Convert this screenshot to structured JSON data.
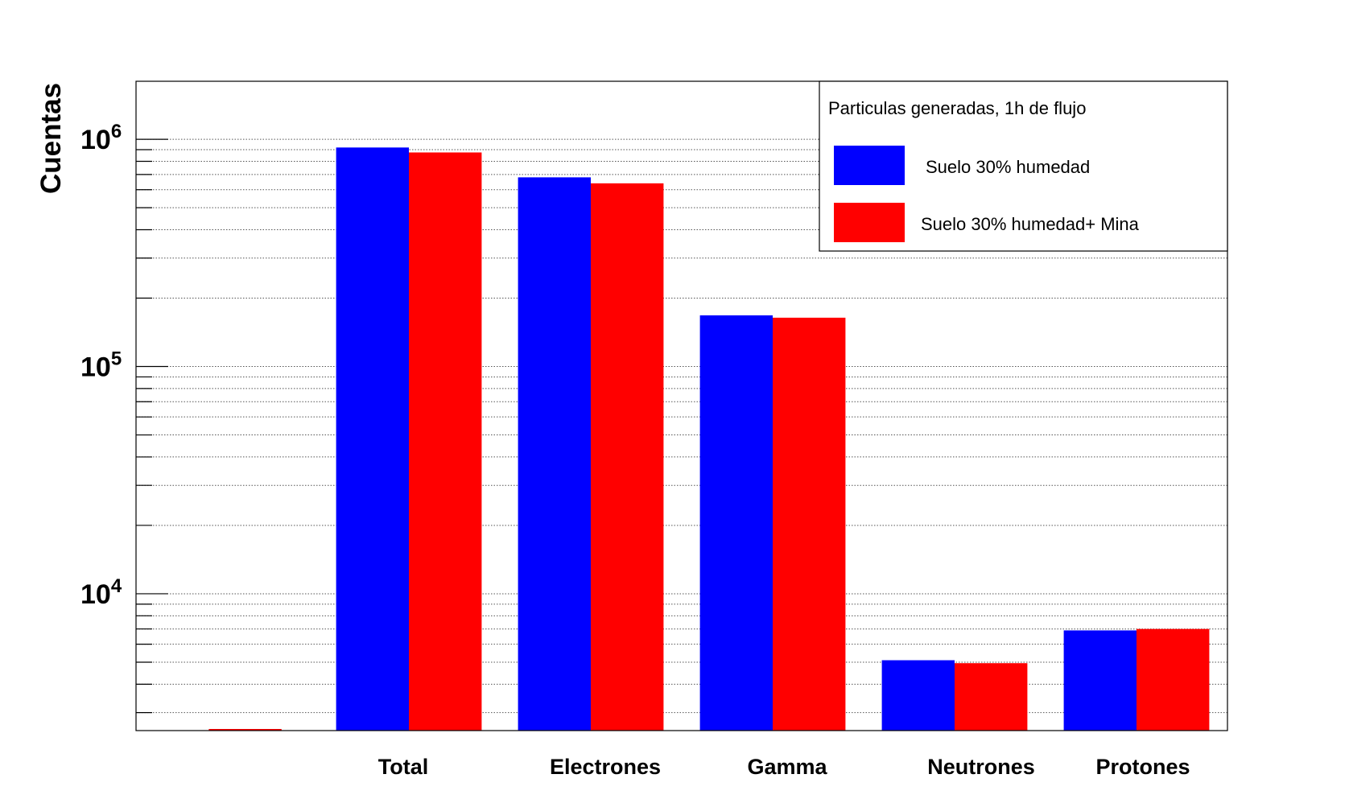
{
  "chart_data": {
    "type": "bar",
    "title": "",
    "xlabel": "",
    "ylabel": "Cuentas",
    "yscale": "log",
    "ylim": [
      2500,
      1800000
    ],
    "grid": "horizontal dotted",
    "categories": [
      "Total",
      "Electrones",
      "Gamma",
      "Neutrones",
      "Protones"
    ],
    "y_tick_labels": [
      {
        "value": 10000,
        "base": "10",
        "exp": "4"
      },
      {
        "value": 100000,
        "base": "10",
        "exp": "5"
      },
      {
        "value": 1000000,
        "base": "10",
        "exp": "6"
      }
    ],
    "legend": {
      "title": "Particulas generadas, 1h de flujo",
      "position": "top-right"
    },
    "series": [
      {
        "name": "Suelo 30% humedad",
        "color": "#0000ff",
        "values": [
          920000,
          680000,
          168000,
          5100,
          6900
        ]
      },
      {
        "name": "Suelo 30% humedad+ Mina",
        "color": "#ff0000",
        "values": [
          875000,
          640000,
          164000,
          4950,
          7000
        ]
      }
    ]
  }
}
